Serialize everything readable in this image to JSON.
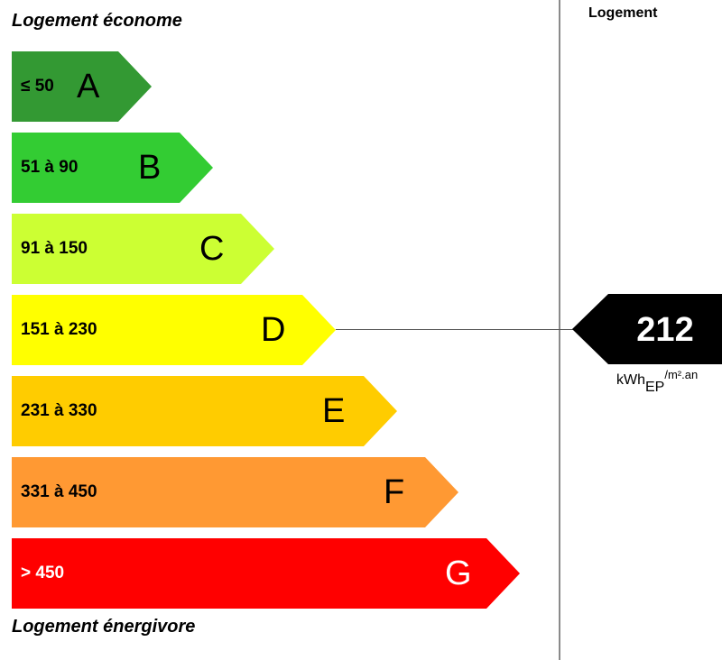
{
  "labels": {
    "top": "Logement économe",
    "bottom": "Logement énergivore",
    "column_header": "Logement"
  },
  "bands": [
    {
      "letter": "A",
      "range": "≤ 50",
      "color": "#339933"
    },
    {
      "letter": "B",
      "range": "51 à 90",
      "color": "#33cc33"
    },
    {
      "letter": "C",
      "range": "91 à 150",
      "color": "#ccff33"
    },
    {
      "letter": "D",
      "range": "151 à 230",
      "color": "#ffff00"
    },
    {
      "letter": "E",
      "range": "231 à 330",
      "color": "#ffcc00"
    },
    {
      "letter": "F",
      "range": "331 à 450",
      "color": "#ff9933"
    },
    {
      "letter": "G",
      "range": "> 450",
      "color": "#ff0000"
    }
  ],
  "indicator": {
    "value": "212",
    "band_letter": "D",
    "unit_main": "kWh",
    "unit_sub": "EP",
    "unit_sup": "/m².an",
    "color": "#000000"
  }
}
